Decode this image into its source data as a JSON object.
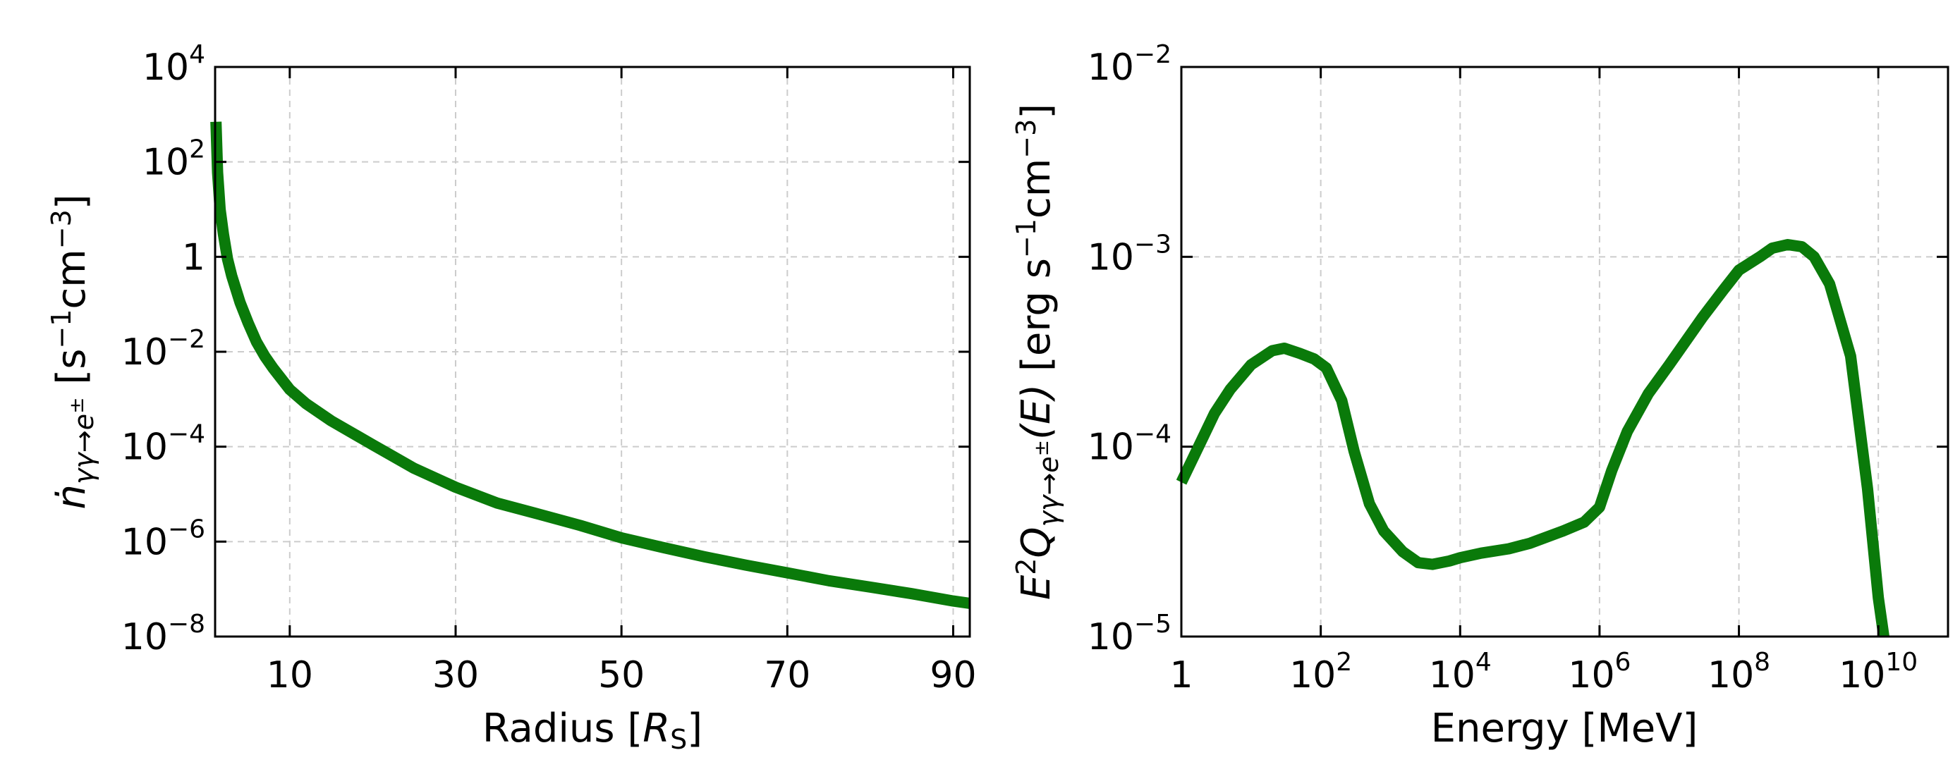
{
  "colors": {
    "series": "#0a7a0a",
    "grid": "#cccccc",
    "axis": "#000000"
  },
  "chart_data": [
    {
      "type": "line",
      "xlabel": "Radius [R_S]",
      "xlabel_parts": {
        "text": "Radius [",
        "var": "R",
        "sub": "S",
        "close": "]"
      },
      "ylabel": "ṅ_{γγ→e±} [s⁻¹cm⁻³]",
      "ylabel_parts": {
        "var": "ṅ",
        "sub": "γγ→e",
        "subsup": "±",
        "unit_open": " [s",
        "sup1": "−1",
        "mid": "cm",
        "sup2": "−3",
        "unit_close": "]"
      },
      "x_scale": "linear",
      "y_scale": "log",
      "xlim": [
        1,
        92
      ],
      "ylim": [
        1e-08,
        10000.0
      ],
      "grid": true,
      "x_ticks": [
        {
          "value": 10,
          "label": "10"
        },
        {
          "value": 30,
          "label": "30"
        },
        {
          "value": 50,
          "label": "50"
        },
        {
          "value": 70,
          "label": "70"
        },
        {
          "value": 90,
          "label": "90"
        }
      ],
      "y_ticks": [
        {
          "value": 10000.0,
          "base": "10",
          "exp": "4"
        },
        {
          "value": 100.0,
          "base": "10",
          "exp": "2"
        },
        {
          "value": 1,
          "base": "1",
          "exp": ""
        },
        {
          "value": 0.01,
          "base": "10",
          "exp": "−2"
        },
        {
          "value": 0.0001,
          "base": "10",
          "exp": "−4"
        },
        {
          "value": 1e-06,
          "base": "10",
          "exp": "−6"
        },
        {
          "value": 1e-08,
          "base": "10",
          "exp": "−8"
        }
      ],
      "series": [
        {
          "x": [
            1.1,
            1.3,
            1.6,
            2,
            2.5,
            3,
            4,
            5,
            6,
            7,
            8,
            10,
            12,
            15,
            20,
            25,
            30,
            35,
            40,
            45,
            50,
            55,
            60,
            65,
            70,
            75,
            80,
            85,
            90,
            92
          ],
          "y": [
            700,
            60,
            10,
            3,
            0.9,
            0.4,
            0.11,
            0.04,
            0.016,
            0.008,
            0.0045,
            0.0016,
            0.0008,
            0.00035,
            0.00011,
            3.5e-05,
            1.4e-05,
            6.5e-06,
            3.8e-06,
            2.2e-06,
            1.2e-06,
            7.5e-07,
            4.8e-07,
            3.2e-07,
            2.2e-07,
            1.5e-07,
            1.1e-07,
            8e-08,
            5.6e-08,
            5e-08
          ]
        }
      ]
    },
    {
      "type": "line",
      "xlabel": "Energy [MeV]",
      "ylabel": "E²Q_{γγ→e±}(E) [erg s⁻¹cm⁻³]",
      "ylabel_parts": {
        "var": "E",
        "sup0": "2",
        "var2": "Q",
        "sub": "γγ→e",
        "subsup": "±",
        "arg": "(E)",
        "unit_open": " [erg s",
        "sup1": "−1",
        "mid": "cm",
        "sup2": "−3",
        "unit_close": "]"
      },
      "x_scale": "log",
      "y_scale": "log",
      "xlim": [
        1,
        100000000000.0
      ],
      "ylim": [
        1e-05,
        0.01
      ],
      "grid": true,
      "x_ticks": [
        {
          "value": 1,
          "base": "1",
          "exp": ""
        },
        {
          "value": 100.0,
          "base": "10",
          "exp": "2"
        },
        {
          "value": 10000.0,
          "base": "10",
          "exp": "4"
        },
        {
          "value": 1000000.0,
          "base": "10",
          "exp": "6"
        },
        {
          "value": 100000000.0,
          "base": "10",
          "exp": "8"
        },
        {
          "value": 10000000000.0,
          "base": "10",
          "exp": "10"
        }
      ],
      "y_ticks": [
        {
          "value": 0.01,
          "base": "10",
          "exp": "−2"
        },
        {
          "value": 0.001,
          "base": "10",
          "exp": "−3"
        },
        {
          "value": 0.0001,
          "base": "10",
          "exp": "−4"
        },
        {
          "value": 1e-05,
          "base": "10",
          "exp": "−5"
        }
      ],
      "series": [
        {
          "x": [
            1,
            2,
            3,
            5,
            10,
            20,
            30,
            50,
            80,
            120,
            200,
            300,
            500,
            800,
            1500,
            2500,
            4000,
            7000,
            10000,
            20000,
            50000,
            100000,
            300000,
            600000,
            1000000,
            1500000,
            2500000,
            5000000,
            10000000,
            30000000,
            60000000,
            100000000,
            200000000,
            300000000,
            500000000,
            800000000,
            1200000000,
            2000000000,
            4000000000,
            7000000000,
            10000000000,
            12000000000
          ],
          "y": [
            6.5e-05,
            0.00011,
            0.00015,
            0.0002,
            0.00027,
            0.00032,
            0.00033,
            0.00031,
            0.00029,
            0.00026,
            0.000175,
            9.5e-05,
            5e-05,
            3.6e-05,
            2.8e-05,
            2.45e-05,
            2.4e-05,
            2.5e-05,
            2.6e-05,
            2.75e-05,
            2.9e-05,
            3.1e-05,
            3.6e-05,
            4e-05,
            4.8e-05,
            7.5e-05,
            0.00012,
            0.00019,
            0.00027,
            0.00048,
            0.00067,
            0.00085,
            0.001,
            0.00111,
            0.00116,
            0.00113,
            0.001,
            0.00072,
            0.0003,
            6e-05,
            1.6e-05,
            1e-05
          ]
        }
      ]
    }
  ]
}
